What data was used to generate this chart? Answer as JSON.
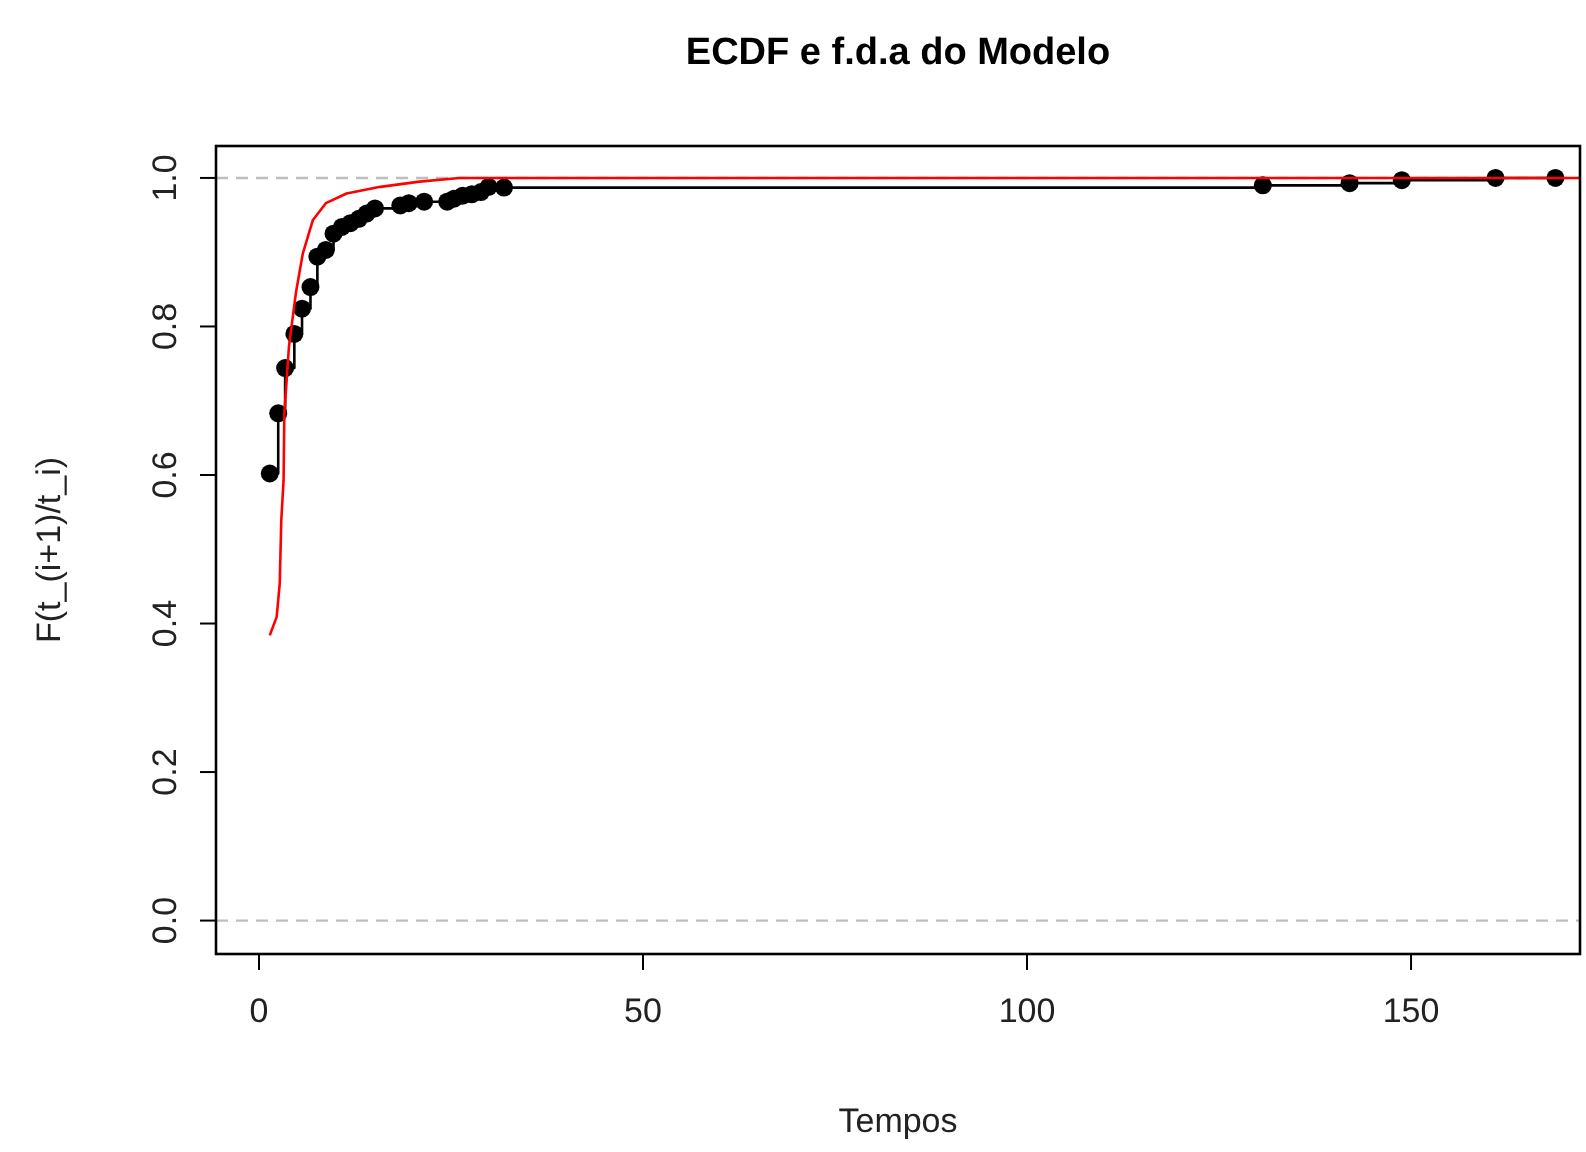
{
  "chart_data": {
    "type": "step",
    "title": "ECDF e f.d.a do Modelo",
    "xlabel": "Tempos",
    "ylabel": "F(t_(i+1)/t_i)",
    "xlim": [
      -5.6,
      172
    ],
    "xticks": [
      0,
      50,
      100,
      150
    ],
    "ylim": [
      -0.045,
      1.043
    ],
    "yticks": [
      {
        "value": 0,
        "label": "0.0"
      },
      {
        "value": 0.2,
        "label": "0.2"
      },
      {
        "value": 0.4,
        "label": "0.4"
      },
      {
        "value": 0.6,
        "label": "0.6"
      },
      {
        "value": 0.8,
        "label": "0.8"
      },
      {
        "value": 1,
        "label": "1.0"
      }
    ],
    "grid": false,
    "ref_lines": [
      {
        "axis": "y",
        "value": 0,
        "color": "#bebebe",
        "line_style": "dashed"
      },
      {
        "axis": "y",
        "value": 1,
        "color": "#bebebe",
        "line_style": "dashed"
      }
    ],
    "series": [
      {
        "color": "#000000",
        "marker": "circle",
        "x": [
          1.4,
          2.5,
          3.4,
          4.6,
          5.6,
          6.7,
          7.6,
          8.7,
          9.7,
          10.8,
          11.9,
          13.0,
          14.0,
          15.1,
          18.4,
          19.5,
          21.5,
          24.5,
          25.4,
          26.5,
          27.7,
          28.9,
          29.9,
          31.9,
          130.7,
          142,
          148.8,
          161,
          168.8
        ],
        "values": [
          0.602,
          0.683,
          0.744,
          0.79,
          0.824,
          0.853,
          0.894,
          0.903,
          0.925,
          0.934,
          0.939,
          0.945,
          0.952,
          0.959,
          0.963,
          0.966,
          0.968,
          0.968,
          0.972,
          0.976,
          0.978,
          0.981,
          0.988,
          0.987,
          0.99,
          0.993,
          0.997,
          1.0,
          1.0
        ]
      },
      {
        "type": "line",
        "color": "#ff0000",
        "marker": "none",
        "x": [
          1.4,
          2.3,
          2.7,
          2.9,
          3.2,
          3.3,
          3.9,
          4.8,
          5.7,
          7.0,
          8.7,
          11.4,
          15.8,
          20.9,
          26.1,
          172
        ],
        "values": [
          0.384,
          0.409,
          0.454,
          0.539,
          0.593,
          0.683,
          0.773,
          0.845,
          0.898,
          0.943,
          0.966,
          0.979,
          0.988,
          0.995,
          1.0,
          1.0
        ]
      }
    ]
  }
}
